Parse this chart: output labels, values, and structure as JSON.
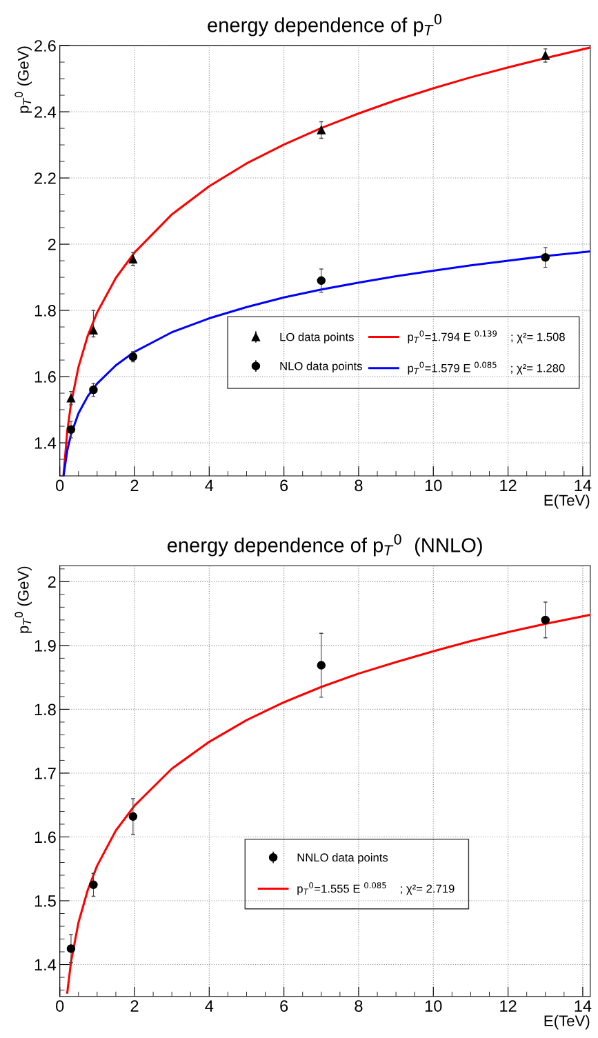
{
  "chart_data": [
    {
      "type": "scatter",
      "title": "energy dependence of p$_{T}$$^{0}$",
      "xlabel": "E(TeV)",
      "ylabel": "p$_{T}$$^{0}$ (GeV)",
      "xlim": [
        0,
        14.2
      ],
      "xticks": [
        0,
        2,
        4,
        6,
        8,
        10,
        12,
        14
      ],
      "ylim": [
        1.3,
        2.6
      ],
      "yticks": [
        {
          "value": 1.4,
          "label": "1.4"
        },
        {
          "value": 1.6,
          "label": "1.6"
        },
        {
          "value": 1.8,
          "label": "1.8"
        },
        {
          "value": 2.0,
          "label": "2"
        },
        {
          "value": 2.2,
          "label": "2.2"
        },
        {
          "value": 2.4,
          "label": "2.4"
        },
        {
          "value": 2.6,
          "label": "2.6"
        }
      ],
      "grid": true,
      "legend": "right",
      "series": [
        {
          "name": "LO data points",
          "marker": "triangle",
          "color": "#000000",
          "x": [
            0.3,
            0.9,
            1.96,
            7,
            13
          ],
          "values": [
            1.535,
            1.74,
            1.955,
            2.345,
            2.57
          ],
          "errors": [
            0.02,
            [
              1.72,
              1.8
            ],
            0.02,
            0.025,
            0.02
          ]
        },
        {
          "name": "NLO data points",
          "marker": "circle",
          "color": "#000000",
          "x": [
            0.3,
            0.9,
            1.96,
            7,
            13
          ],
          "values": [
            1.44,
            1.56,
            1.66,
            1.89,
            1.96
          ],
          "errors": [
            0.025,
            0.02,
            0.015,
            0.035,
            0.03
          ]
        },
        {
          "name": "p$_{T}$$^{0}$=1.794 E $^{0.139}$    ; χ²= 1.508",
          "type": "line",
          "color": "#ff0000",
          "x": [
            0.1,
            0.2,
            0.3,
            0.5,
            0.75,
            1,
            1.5,
            2,
            3,
            4,
            5,
            6,
            7,
            8,
            9,
            10,
            11,
            12,
            13,
            14.2
          ],
          "values": [
            1.303,
            1.434,
            1.518,
            1.629,
            1.724,
            1.794,
            1.898,
            1.975,
            2.09,
            2.175,
            2.244,
            2.301,
            2.351,
            2.395,
            2.435,
            2.471,
            2.504,
            2.534,
            2.562,
            2.594
          ]
        },
        {
          "name": "p$_{T}$$^{0}$=1.579 E $^{0.085}$    ; χ²= 1.280",
          "type": "line",
          "color": "#0000ff",
          "x": [
            0.1,
            0.2,
            0.3,
            0.5,
            0.75,
            1,
            1.5,
            2,
            3,
            4,
            5,
            6,
            7,
            8,
            9,
            10,
            11,
            12,
            13,
            14.2
          ],
          "values": [
            1.3,
            1.377,
            1.425,
            1.489,
            1.541,
            1.579,
            1.634,
            1.675,
            1.734,
            1.776,
            1.81,
            1.839,
            1.863,
            1.884,
            1.903,
            1.92,
            1.936,
            1.95,
            1.964,
            1.978
          ]
        }
      ]
    },
    {
      "type": "scatter",
      "title": "energy dependence of p$_{T}$$^{0}$  (NNLO)",
      "xlabel": "E(TeV)",
      "ylabel": "p$_{T}$$^{0}$ (GeV)",
      "xlim": [
        0,
        14.2
      ],
      "xticks": [
        0,
        2,
        4,
        6,
        8,
        10,
        12,
        14
      ],
      "ylim": [
        1.35,
        2.025
      ],
      "yticks": [
        1.4,
        1.5,
        1.6,
        1.7,
        1.8,
        1.9,
        {
          "value": 2.0,
          "label": "2"
        }
      ],
      "grid": true,
      "legend": "bottom",
      "series": [
        {
          "name": "NNLO data points",
          "marker": "circle",
          "color": "#000000",
          "x": [
            0.3,
            0.9,
            1.96,
            7,
            13
          ],
          "values": [
            1.425,
            1.525,
            1.632,
            1.869,
            1.94
          ],
          "errors": [
            0.022,
            0.018,
            0.028,
            0.05,
            0.028
          ]
        },
        {
          "name": "p$_{T}$$^{0}$=1.555 E $^{0.085}$    ; χ²= 2.719",
          "type": "line",
          "color": "#ff0000",
          "x": [
            0.2,
            0.3,
            0.5,
            0.75,
            1,
            1.5,
            2,
            3,
            4,
            5,
            6,
            7,
            8,
            9,
            10,
            11,
            12,
            13,
            14.2
          ],
          "values": [
            1.356,
            1.404,
            1.466,
            1.517,
            1.555,
            1.61,
            1.649,
            1.707,
            1.749,
            1.783,
            1.811,
            1.835,
            1.856,
            1.874,
            1.891,
            1.907,
            1.921,
            1.934,
            1.948
          ]
        }
      ]
    }
  ]
}
